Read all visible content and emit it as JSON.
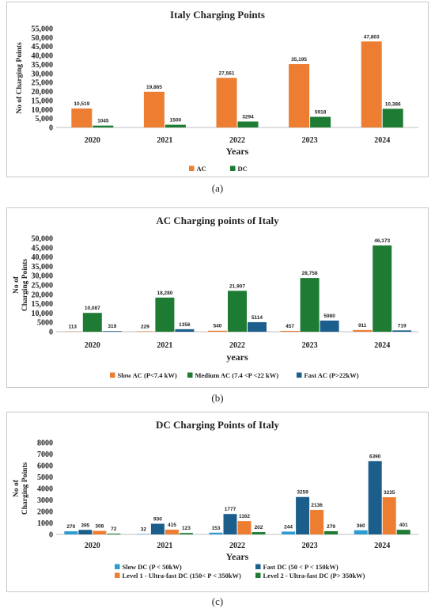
{
  "chart_data": [
    {
      "type": "bar",
      "title": "Italy Charging Points",
      "xlabel": "Years",
      "ylabel": "No of Charging Points",
      "categories": [
        "2020",
        "2021",
        "2022",
        "2023",
        "2024"
      ],
      "ylim": [
        0,
        55000
      ],
      "yticks": [
        "0",
        "5,000",
        "10,000",
        "15,000",
        "20,000",
        "25,000",
        "30,000",
        "35,000",
        "40,000",
        "45,000",
        "50,000",
        "55,000"
      ],
      "legend_position": "bottom",
      "grid": false,
      "series": [
        {
          "name": "AC",
          "color": "#ED7D31",
          "values": [
            10519,
            19865,
            27561,
            35195,
            47803
          ],
          "labels": [
            "10,519",
            "19,865",
            "27,561",
            "35,195",
            "47,803"
          ]
        },
        {
          "name": "DC",
          "color": "#1E7B34",
          "values": [
            1045,
            1500,
            3294,
            5918,
            10386
          ],
          "labels": [
            "1045",
            "1500",
            "3294",
            "5918",
            "10,386"
          ]
        }
      ]
    },
    {
      "type": "bar",
      "title": "AC Charging points of Italy",
      "xlabel": "years",
      "ylabel": "No of Charging Points",
      "categories": [
        "2020",
        "2021",
        "2022",
        "2023",
        "2024"
      ],
      "ylim": [
        0,
        50000
      ],
      "yticks": [
        "0",
        "5000",
        "10,000",
        "15,000",
        "20,000",
        "25,000",
        "30,000",
        "35,000",
        "40,000",
        "45,000",
        "50,000"
      ],
      "legend_position": "bottom",
      "grid": false,
      "series": [
        {
          "name": "Slow AC (P<7.4 kW)",
          "color": "#ED7D31",
          "values": [
            113,
            229,
            540,
            457,
            911
          ],
          "labels": [
            "113",
            "229",
            "540",
            "457",
            "911"
          ]
        },
        {
          "name": "Medium AC (7.4 <P <22 kW)",
          "color": "#1E7B34",
          "values": [
            10087,
            18280,
            21907,
            28758,
            46173
          ],
          "labels": [
            "10,087",
            "18,280",
            "21,907",
            "28,758",
            "46,173"
          ]
        },
        {
          "name": "Fast AC  (P>22kW)",
          "color": "#1B5E8C",
          "values": [
            319,
            1356,
            5114,
            5980,
            719
          ],
          "labels": [
            "319",
            "1356",
            "5114",
            "5980",
            "719"
          ]
        }
      ]
    },
    {
      "type": "bar",
      "title": "DC Charging Points of Italy",
      "xlabel": "Years",
      "ylabel": "No of Charging Points",
      "categories": [
        "2020",
        "2021",
        "2022",
        "2023",
        "2024"
      ],
      "ylim": [
        0,
        8000
      ],
      "yticks": [
        "0",
        "1000",
        "2000",
        "3000",
        "4000",
        "5000",
        "6000",
        "7000",
        "8000"
      ],
      "legend_position": "bottom",
      "grid": false,
      "series": [
        {
          "name": "Slow DC (P < 50kW)",
          "color": "#2E9BD1",
          "values": [
            270,
            32,
            153,
            244,
            360
          ],
          "labels": [
            "270",
            "32",
            "153",
            "244",
            "360"
          ]
        },
        {
          "name": "Fast DC  (50 < P < 150kW)",
          "color": "#1B5E8C",
          "values": [
            395,
            930,
            1777,
            3259,
            6390
          ],
          "labels": [
            "395",
            "930",
            "1777",
            "3259",
            "6390"
          ]
        },
        {
          "name": "Level 1 - Ultra-fast DC (150< P < 350kW)",
          "color": "#ED7D31",
          "values": [
            308,
            415,
            1162,
            2136,
            3235
          ],
          "labels": [
            "308",
            "415",
            "1162",
            "2136",
            "3235"
          ]
        },
        {
          "name": "Level 2 - Ultra-fast DC (P> 350kW)",
          "color": "#1E7B34",
          "values": [
            72,
            123,
            202,
            279,
            401
          ],
          "labels": [
            "72",
            "123",
            "202",
            "279",
            "401"
          ]
        }
      ]
    }
  ],
  "captions": [
    "(a)",
    "(b)",
    "(c)"
  ]
}
